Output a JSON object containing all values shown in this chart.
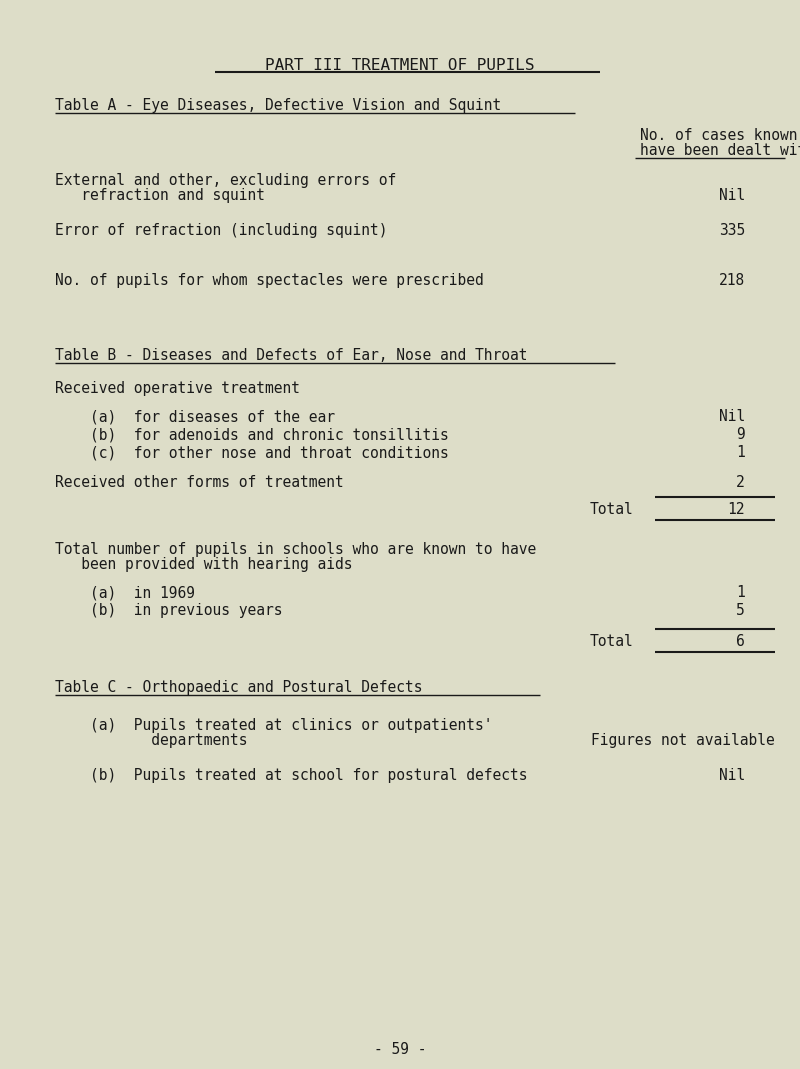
{
  "bg_color": "#ddddc8",
  "text_color": "#1a1a1a",
  "page_title": "PART III TREATMENT OF PUPILS",
  "table_a_title": "Table A - Eye Diseases, Defective Vision and Squint",
  "col_header_line1": "No. of cases known to",
  "col_header_line2": "have been dealt with",
  "table_a_rows": [
    {
      "label1": "External and other, excluding errors of",
      "label2": "   refraction and squint",
      "value": "Nil",
      "two_line": true
    },
    {
      "label1": "Error of refraction (including squint)",
      "label2": "",
      "value": "335",
      "two_line": false
    },
    {
      "label1": "No. of pupils for whom spectacles were prescribed",
      "label2": "",
      "value": "218",
      "two_line": false
    }
  ],
  "table_b_title": "Table B - Diseases and Defects of Ear, Nose and Throat",
  "table_b_subtitle": "Received operative treatment",
  "table_b_rows": [
    {
      "label": "    (a)  for diseases of the ear",
      "value": "Nil"
    },
    {
      "label": "    (b)  for adenoids and chronic tonsillitis",
      "value": "9"
    },
    {
      "label": "    (c)  for other nose and throat conditions",
      "value": "1"
    }
  ],
  "table_b_other_label": "Received other forms of treatment",
  "table_b_other_value": "2",
  "table_b_total_label": "Total",
  "table_b_total_value": "12",
  "hearing_title1": "Total number of pupils in schools who are known to have",
  "hearing_title2": "   been provided with hearing aids",
  "hearing_rows": [
    {
      "label": "    (a)  in 1969",
      "value": "1"
    },
    {
      "label": "    (b)  in previous years",
      "value": "5"
    }
  ],
  "hearing_total_label": "Total",
  "hearing_total_value": "6",
  "table_c_title": "Table C - Orthopaedic and Postural Defects",
  "table_c_rows": [
    {
      "label1": "    (a)  Pupils treated at clinics or outpatients'",
      "label2": "           departments",
      "value": "Figures not available",
      "two_line": true
    },
    {
      "label1": "    (b)  Pupils treated at school for postural defects",
      "label2": "",
      "value": "Nil",
      "two_line": false
    }
  ],
  "page_number": "- 59 -",
  "fs": 10.5,
  "fs_title": 11.5
}
